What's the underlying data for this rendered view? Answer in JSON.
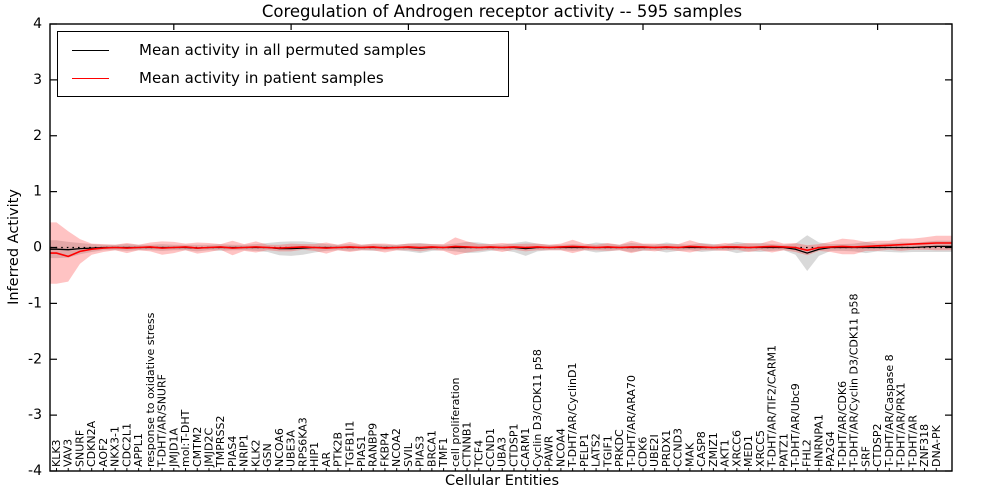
{
  "title": "Coregulation of Androgen receptor activity -- 595 samples",
  "axes": {
    "xlabel": "Cellular Entities",
    "ylabel": "Inferred Activity",
    "yticks": [
      4,
      3,
      2,
      1,
      0,
      -1,
      -2,
      -3,
      -4
    ],
    "ylim": [
      -4,
      4
    ]
  },
  "legend": {
    "items": [
      {
        "label": "Mean activity in all permuted samples",
        "color": "#000000"
      },
      {
        "label": "Mean activity in patient samples",
        "color": "#ff0000"
      }
    ]
  },
  "chart_data": {
    "type": "line",
    "title": "Coregulation of Androgen receptor activity -- 595 samples",
    "xlabel": "Cellular Entities",
    "ylabel": "Inferred Activity",
    "ylim": [
      -4,
      4
    ],
    "grid": false,
    "legend_position": "upper left",
    "zero_line": {
      "style": "dotted",
      "color": "#000000",
      "y": 0
    },
    "categories": [
      "KLK3",
      "VAV3",
      "SNURF",
      "CDKN2A",
      "AOF2",
      "NKX3-1",
      "CDC2L1",
      "APPL1",
      "response to oxidative stress",
      "T-DHT/AR/SNURF",
      "JMJD1A",
      "mol:T-DHT",
      "CMTM2",
      "JMJD2C",
      "TMPRSS2",
      "PIAS4",
      "NRIP1",
      "KLK2",
      "GSN",
      "NCOA6",
      "UBE3A",
      "RPS6KA3",
      "HIP1",
      "AR",
      "PTK2B",
      "TGFB1I1",
      "PIAS1",
      "RANBP9",
      "FKBP4",
      "NCOA2",
      "SVIL",
      "PIAS3",
      "BRCA1",
      "TMF1",
      "cell proliferation",
      "CTNNB1",
      "TCF4",
      "CCND1",
      "UBA3",
      "CTDSP1",
      "CARM1",
      "Cyclin D3/CDK11 p58",
      "PAWR",
      "NCOA4",
      "T-DHT/AR/CyclinD1",
      "PELP1",
      "LATS2",
      "TGIF1",
      "PRKDC",
      "T-DHT/AR/ARA70",
      "CDK6",
      "UBE2I",
      "PRDX1",
      "CCND3",
      "MAK",
      "CASP8",
      "ZMIZ1",
      "AKT1",
      "XRCC6",
      "MED1",
      "XRCC5",
      "T-DHT/AR/TIF2/CARM1",
      "PATZ1",
      "T-DHT/AR/Ubc9",
      "FHL2",
      "HNRNPA1",
      "PA2G4",
      "T-DHT/AR/CDK6",
      "T-DHT/AR/Cyclin D3/CDK11 p58",
      "SRF",
      "CTDSP2",
      "T-DHT/AR/Caspase 8",
      "T-DHT/AR/PRX1",
      "T-DHT/AR",
      "ZNF318",
      "DNA-PK"
    ],
    "series": [
      {
        "name": "Mean activity in all permuted samples",
        "color": "#000000",
        "band_color": "#888888",
        "band_alpha": 0.32,
        "values": [
          -0.03,
          -0.04,
          -0.02,
          -0.01,
          0,
          0,
          0,
          0,
          0,
          0,
          0,
          0,
          -0.01,
          0,
          0,
          0,
          0,
          0,
          0,
          -0.02,
          -0.02,
          -0.01,
          0,
          0,
          0,
          0,
          0,
          0,
          0,
          0,
          0,
          -0.01,
          0,
          0,
          0,
          0,
          0,
          0,
          0,
          0,
          -0.02,
          0,
          0,
          0,
          0,
          0,
          0,
          0,
          0,
          0,
          0,
          0,
          0,
          0,
          0,
          0,
          0,
          0,
          0,
          0,
          0,
          0,
          0,
          -0.03,
          -0.1,
          -0.03,
          0,
          0,
          0,
          0,
          0,
          0,
          0,
          0,
          0.01,
          0.02
        ],
        "band_halfwidth": [
          0.16,
          0.14,
          0.1,
          0.07,
          0.05,
          0.05,
          0.06,
          0.05,
          0.05,
          0.06,
          0.05,
          0.05,
          0.06,
          0.05,
          0.06,
          0.05,
          0.05,
          0.06,
          0.08,
          0.12,
          0.13,
          0.12,
          0.09,
          0.06,
          0.05,
          0.06,
          0.05,
          0.06,
          0.05,
          0.05,
          0.07,
          0.09,
          0.06,
          0.05,
          0.07,
          0.1,
          0.09,
          0.06,
          0.05,
          0.08,
          0.13,
          0.07,
          0.05,
          0.05,
          0.06,
          0.05,
          0.09,
          0.07,
          0.05,
          0.08,
          0.06,
          0.05,
          0.09,
          0.06,
          0.05,
          0.08,
          0.06,
          0.05,
          0.1,
          0.07,
          0.08,
          0.06,
          0.05,
          0.1,
          0.32,
          0.12,
          0.06,
          0.06,
          0.07,
          0.1,
          0.07,
          0.08,
          0.09,
          0.08,
          0.09,
          0.1
        ]
      },
      {
        "name": "Mean activity in patient samples",
        "color": "#ff0000",
        "band_color": "#ff2222",
        "band_alpha": 0.27,
        "values": [
          -0.1,
          -0.16,
          -0.07,
          -0.03,
          -0.01,
          0,
          -0.01,
          0,
          0.01,
          -0.01,
          0,
          0.01,
          -0.01,
          0,
          0.01,
          -0.01,
          0,
          0.01,
          0,
          -0.01,
          0,
          0.01,
          0,
          -0.01,
          0,
          0.01,
          0,
          0.01,
          -0.01,
          0,
          0.01,
          0,
          0.01,
          0,
          0.02,
          0.01,
          0,
          0.01,
          0,
          0.01,
          0,
          0.01,
          0,
          0.01,
          0.02,
          0.01,
          0,
          0.01,
          0,
          0.01,
          0.01,
          0,
          0.01,
          0,
          0.02,
          0.01,
          0,
          0.01,
          0.01,
          0,
          0.01,
          0.02,
          0.01,
          0,
          -0.05,
          0,
          0.01,
          0.02,
          0.01,
          0.02,
          0.03,
          0.04,
          0.05,
          0.06,
          0.07,
          0.08
        ],
        "band_halfwidth": [
          0.55,
          0.45,
          0.22,
          0.1,
          0.07,
          0.05,
          0.09,
          0.05,
          0.08,
          0.12,
          0.1,
          0.06,
          0.1,
          0.08,
          0.05,
          0.13,
          0.06,
          0.1,
          0.05,
          0.06,
          0.07,
          0.05,
          0.06,
          0.1,
          0.05,
          0.09,
          0.05,
          0.06,
          0.08,
          0.05,
          0.06,
          0.07,
          0.05,
          0.06,
          0.16,
          0.1,
          0.06,
          0.05,
          0.08,
          0.05,
          0.07,
          0.06,
          0.05,
          0.06,
          0.12,
          0.06,
          0.05,
          0.07,
          0.05,
          0.11,
          0.06,
          0.07,
          0.05,
          0.06,
          0.11,
          0.06,
          0.05,
          0.07,
          0.05,
          0.08,
          0.06,
          0.11,
          0.06,
          0.08,
          0.09,
          0.06,
          0.09,
          0.14,
          0.13,
          0.08,
          0.09,
          0.08,
          0.11,
          0.1,
          0.11,
          0.13
        ]
      }
    ]
  }
}
